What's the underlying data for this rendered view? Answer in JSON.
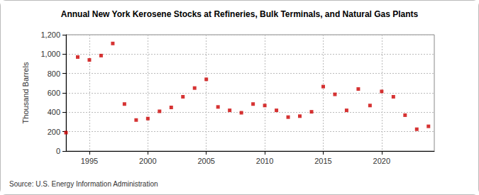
{
  "chart_data": {
    "type": "scatter",
    "title": "Annual New York Kerosene Stocks at Refineries, Bulk Terminals, and Natural Gas Plants",
    "y_label": "Thousand Barrels",
    "annotations": [
      "Source: U.S. Energy Information Administration"
    ],
    "x": [
      1993,
      1994,
      1995,
      1996,
      1997,
      1998,
      1999,
      2000,
      2001,
      2002,
      2003,
      2004,
      2005,
      2006,
      2007,
      2008,
      2009,
      2010,
      2011,
      2012,
      2013,
      2014,
      2015,
      2016,
      2017,
      2018,
      2019,
      2020,
      2021,
      2022,
      2023,
      2024
    ],
    "values": [
      190,
      970,
      940,
      985,
      1110,
      485,
      320,
      335,
      410,
      450,
      560,
      650,
      740,
      455,
      420,
      395,
      485,
      470,
      420,
      350,
      360,
      405,
      665,
      585,
      420,
      640,
      470,
      615,
      560,
      370,
      225,
      255
    ],
    "color": "#cc0000",
    "marker": "square",
    "xlim": [
      1993,
      2024.5
    ],
    "xticks": [
      1995,
      2000,
      2005,
      2010,
      2015,
      2020
    ],
    "ylim": [
      0,
      1200
    ],
    "yticks": [
      0,
      200,
      400,
      600,
      800,
      {
        "value": 1000,
        "label": "1,000"
      },
      {
        "value": 1200,
        "label": "1,200"
      }
    ],
    "grid": true
  }
}
